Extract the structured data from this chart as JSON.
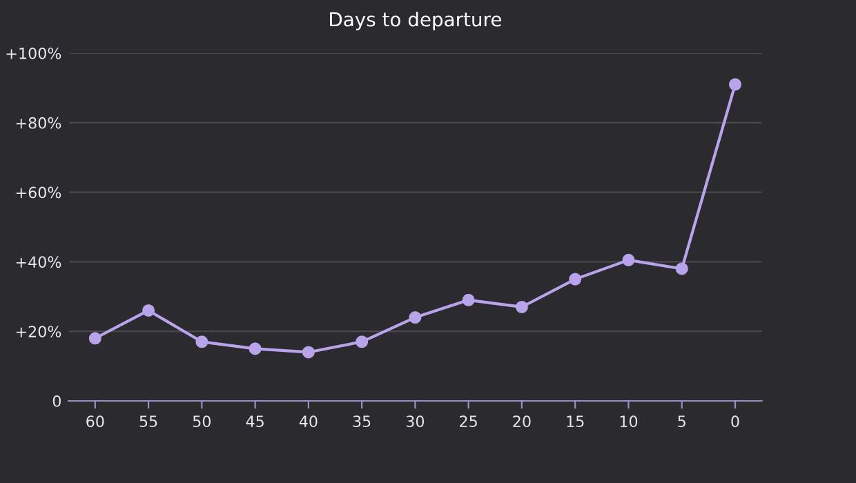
{
  "chart_data": {
    "type": "line",
    "title": "Days to departure",
    "x": [
      60,
      55,
      50,
      45,
      40,
      35,
      30,
      25,
      20,
      15,
      10,
      5,
      0
    ],
    "series": [
      {
        "color": "#b9a3ea",
        "values": [
          18,
          26,
          17,
          15,
          14,
          17,
          24,
          29,
          27,
          35,
          40.5,
          38,
          91
        ]
      }
    ],
    "xlim": [
      62.5,
      -2.5
    ],
    "xticks": [
      60,
      55,
      50,
      45,
      40,
      35,
      30,
      25,
      20,
      15,
      10,
      5,
      0
    ],
    "ylim": [
      0,
      100
    ],
    "yticks": [
      {
        "value": 0,
        "label": "0"
      },
      {
        "value": 20,
        "label": "+20%"
      },
      {
        "value": 40,
        "label": "+40%"
      },
      {
        "value": 60,
        "label": "+60%"
      },
      {
        "value": 80,
        "label": "+80%"
      },
      {
        "value": 100,
        "label": "+100%"
      }
    ],
    "grid": "y",
    "marker": "circle",
    "line_style": "solid"
  }
}
